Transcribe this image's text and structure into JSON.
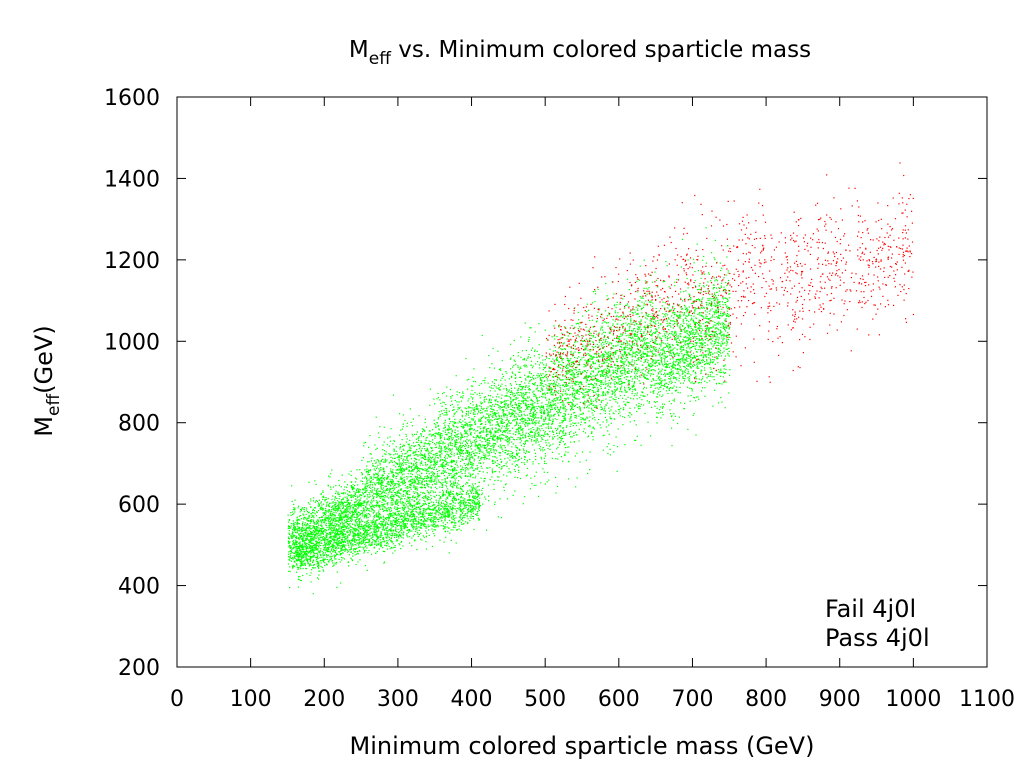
{
  "chart_data": {
    "type": "scatter",
    "title": {
      "main": "M",
      "sub": "eff",
      "rest": " vs. Minimum colored sparticle mass"
    },
    "xlabel": "Minimum colored sparticle mass (GeV)",
    "ylabel": {
      "main": "M",
      "sub": "eff",
      "rest": "(GeV)"
    },
    "xlim": [
      0,
      1100
    ],
    "ylim": [
      200,
      1600
    ],
    "xticks": [
      0,
      100,
      200,
      300,
      400,
      500,
      600,
      700,
      800,
      900,
      1000,
      1100
    ],
    "yticks": [
      200,
      400,
      600,
      800,
      1000,
      1200,
      1400,
      1600
    ],
    "legend_position": "bottom-right",
    "series": [
      {
        "name": "Fail 4j0l",
        "color": "#ff0000",
        "approx_point_clusters": [
          {
            "x_range": [
              500,
              600
            ],
            "y_center": 1000,
            "y_spread": 120
          },
          {
            "x_range": [
              600,
              700
            ],
            "y_center": 1100,
            "y_spread": 150
          },
          {
            "x_range": [
              700,
              800
            ],
            "y_center": 1150,
            "y_spread": 180
          },
          {
            "x_range": [
              800,
              900
            ],
            "y_center": 1150,
            "y_spread": 180
          },
          {
            "x_range": [
              900,
              1000
            ],
            "y_center": 1200,
            "y_spread": 150
          }
        ]
      },
      {
        "name": "Pass 4j0l",
        "color": "#00ff00",
        "approx_point_clusters": [
          {
            "x_range": [
              150,
              250
            ],
            "y_center": 550,
            "y_spread": 80
          },
          {
            "x_range": [
              250,
              350
            ],
            "y_center": 650,
            "y_spread": 120
          },
          {
            "x_range": [
              350,
              450
            ],
            "y_center": 750,
            "y_spread": 140
          },
          {
            "x_range": [
              450,
              550
            ],
            "y_center": 850,
            "y_spread": 150
          },
          {
            "x_range": [
              550,
              650
            ],
            "y_center": 950,
            "y_spread": 150
          },
          {
            "x_range": [
              650,
              750
            ],
            "y_center": 1000,
            "y_spread": 140
          }
        ]
      }
    ]
  }
}
